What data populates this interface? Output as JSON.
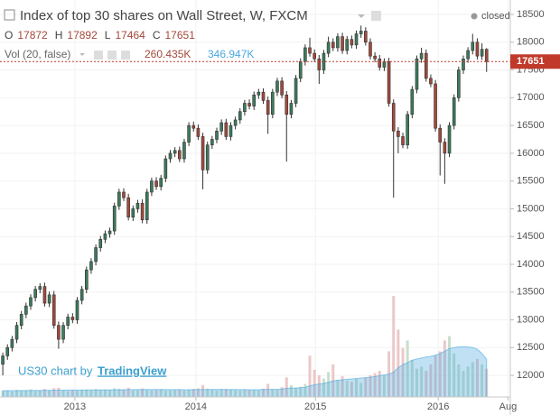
{
  "chart_data": {
    "type": "candlestick",
    "title": "Index of top 30 shares on Wall Street, W, FXCM",
    "status": "closed",
    "ohlc_labels": [
      "O",
      "H",
      "L",
      "C"
    ],
    "up_color": "#3c7a5c",
    "down_color": "#a3483a",
    "ohlc": [
      [
        12200,
        12410,
        12000,
        12350
      ],
      [
        12350,
        12560,
        12280,
        12500
      ],
      [
        12500,
        12710,
        12430,
        12650
      ],
      [
        12650,
        12960,
        12580,
        12900
      ],
      [
        12900,
        13160,
        12830,
        13100
      ],
      [
        13100,
        13310,
        13030,
        13250
      ],
      [
        13250,
        13460,
        13180,
        13400
      ],
      [
        13400,
        13610,
        13330,
        13550
      ],
      [
        13550,
        13660,
        13480,
        13600
      ],
      [
        13600,
        13670,
        13240,
        13300
      ],
      [
        13300,
        13510,
        13230,
        13450
      ],
      [
        13450,
        13520,
        12840,
        12900
      ],
      [
        12900,
        12970,
        12480,
        12650
      ],
      [
        12650,
        12960,
        12580,
        12900
      ],
      [
        12900,
        13110,
        12830,
        13050
      ],
      [
        13050,
        13120,
        12940,
        13000
      ],
      [
        13000,
        13410,
        12930,
        13350
      ],
      [
        13350,
        13610,
        13280,
        13550
      ],
      [
        13550,
        13960,
        13480,
        13900
      ],
      [
        13900,
        14110,
        13830,
        14050
      ],
      [
        14050,
        14360,
        13980,
        14300
      ],
      [
        14300,
        14510,
        14230,
        14450
      ],
      [
        14450,
        14610,
        14380,
        14550
      ],
      [
        14550,
        14660,
        14480,
        14600
      ],
      [
        14600,
        15110,
        14530,
        15050
      ],
      [
        15050,
        15360,
        14980,
        15300
      ],
      [
        15300,
        15370,
        15140,
        15200
      ],
      [
        15200,
        15270,
        14790,
        14850
      ],
      [
        14850,
        15060,
        14780,
        15000
      ],
      [
        15000,
        15160,
        14930,
        15100
      ],
      [
        15100,
        15170,
        14740,
        14800
      ],
      [
        14800,
        15360,
        14730,
        15300
      ],
      [
        15300,
        15560,
        15230,
        15500
      ],
      [
        15500,
        15570,
        15340,
        15400
      ],
      [
        15400,
        15610,
        15330,
        15550
      ],
      [
        15550,
        15960,
        15480,
        15900
      ],
      [
        15900,
        16060,
        15830,
        16000
      ],
      [
        16000,
        16110,
        15930,
        16050
      ],
      [
        16050,
        16120,
        15840,
        15900
      ],
      [
        15900,
        16260,
        15830,
        16200
      ],
      [
        16200,
        16560,
        16130,
        16500
      ],
      [
        16500,
        16570,
        16390,
        16450
      ],
      [
        16450,
        16520,
        16240,
        16300
      ],
      [
        16300,
        16370,
        15350,
        15700
      ],
      [
        15700,
        16210,
        15630,
        16150
      ],
      [
        16150,
        16310,
        16080,
        16250
      ],
      [
        16250,
        16460,
        16180,
        16400
      ],
      [
        16400,
        16610,
        16330,
        16550
      ],
      [
        16550,
        16620,
        16240,
        16300
      ],
      [
        16300,
        16560,
        16230,
        16500
      ],
      [
        16500,
        16660,
        16430,
        16600
      ],
      [
        16600,
        16810,
        16530,
        16750
      ],
      [
        16750,
        16960,
        16680,
        16900
      ],
      [
        16900,
        16970,
        16790,
        16850
      ],
      [
        16850,
        17110,
        16780,
        17050
      ],
      [
        17050,
        17160,
        16980,
        17100
      ],
      [
        17100,
        17170,
        16890,
        16950
      ],
      [
        16950,
        17020,
        16350,
        16700
      ],
      [
        16700,
        17160,
        16630,
        17100
      ],
      [
        17100,
        17360,
        17030,
        17300
      ],
      [
        17300,
        17370,
        16990,
        17050
      ],
      [
        17050,
        17120,
        15850,
        16700
      ],
      [
        16700,
        16960,
        16630,
        16900
      ],
      [
        16900,
        17410,
        16830,
        17350
      ],
      [
        17350,
        17710,
        17280,
        17650
      ],
      [
        17650,
        17960,
        17580,
        17900
      ],
      [
        17900,
        18080,
        17740,
        17800
      ],
      [
        17800,
        17870,
        17640,
        17700
      ],
      [
        17700,
        17770,
        17250,
        17500
      ],
      [
        17500,
        17860,
        17430,
        17800
      ],
      [
        17800,
        18100,
        17730,
        18000
      ],
      [
        18000,
        18070,
        17840,
        17900
      ],
      [
        17900,
        18160,
        17830,
        18100
      ],
      [
        18100,
        18170,
        17790,
        17850
      ],
      [
        17850,
        18110,
        17780,
        18050
      ],
      [
        18050,
        18120,
        17890,
        17950
      ],
      [
        17950,
        18210,
        17880,
        18150
      ],
      [
        18150,
        18300,
        18080,
        18200
      ],
      [
        18200,
        18270,
        17940,
        18000
      ],
      [
        18000,
        18070,
        17690,
        17750
      ],
      [
        17750,
        17820,
        17640,
        17700
      ],
      [
        17700,
        17770,
        17490,
        17550
      ],
      [
        17550,
        17710,
        17480,
        17650
      ],
      [
        17650,
        17720,
        16840,
        16900
      ],
      [
        16900,
        16970,
        15200,
        16400
      ],
      [
        16400,
        16470,
        16000,
        16300
      ],
      [
        16300,
        16370,
        16090,
        16150
      ],
      [
        16150,
        16760,
        16080,
        16700
      ],
      [
        16700,
        17210,
        16630,
        17150
      ],
      [
        17150,
        17760,
        17080,
        17700
      ],
      [
        17700,
        17900,
        17630,
        17800
      ],
      [
        17800,
        17870,
        17290,
        17350
      ],
      [
        17350,
        17420,
        17190,
        17250
      ],
      [
        17250,
        17320,
        16390,
        16450
      ],
      [
        16450,
        16520,
        15600,
        16200
      ],
      [
        16200,
        16270,
        15450,
        16000
      ],
      [
        16000,
        16560,
        15930,
        16500
      ],
      [
        16500,
        17060,
        16430,
        17000
      ],
      [
        17000,
        17560,
        16930,
        17500
      ],
      [
        17500,
        17760,
        17430,
        17700
      ],
      [
        17700,
        17910,
        17630,
        17850
      ],
      [
        17850,
        18150,
        17780,
        18000
      ],
      [
        18000,
        18070,
        17690,
        17750
      ],
      [
        17750,
        17980,
        17680,
        17872
      ],
      [
        17872,
        17892,
        17464,
        17651
      ]
    ],
    "volume": {
      "name": "Vol (20, false)",
      "up_color": "#c9dfcd",
      "down_color": "#ecc8c8",
      "last_label": "260.435K",
      "values": [
        55,
        60,
        50,
        65,
        58,
        62,
        70,
        55,
        60,
        75,
        58,
        80,
        85,
        60,
        55,
        62,
        58,
        66,
        70,
        60,
        72,
        65,
        68,
        64,
        80,
        75,
        70,
        85,
        60,
        62,
        78,
        66,
        60,
        64,
        70,
        58,
        62,
        66,
        72,
        60,
        68,
        74,
        80,
        110,
        76,
        64,
        60,
        70,
        72,
        66,
        62,
        60,
        70,
        64,
        68,
        60,
        74,
        120,
        72,
        66,
        90,
        180,
        110,
        85,
        95,
        120,
        380,
        250,
        200,
        170,
        230,
        300,
        160,
        190,
        150,
        140,
        170,
        130,
        180,
        200,
        220,
        240,
        200,
        420,
        930,
        620,
        450,
        520,
        340,
        260,
        280,
        240,
        300,
        380,
        420,
        520,
        560,
        400,
        300,
        240,
        280,
        320,
        350,
        300,
        260.435
      ]
    },
    "volume_ma": {
      "color": "#4aa8e0",
      "last_label": "346.947K",
      "values": [
        58,
        58,
        58,
        59,
        59,
        59,
        60,
        60,
        60,
        61,
        61,
        62,
        63,
        63,
        63,
        63,
        63,
        63,
        63,
        64,
        64,
        65,
        65,
        65,
        65,
        66,
        66,
        67,
        67,
        68,
        68,
        68,
        69,
        69,
        68,
        68,
        67,
        67,
        67,
        66,
        66,
        67,
        67,
        68,
        69,
        70,
        70,
        70,
        69,
        68,
        68,
        67,
        67,
        66,
        66,
        66,
        70,
        70,
        70,
        71,
        73,
        80,
        82,
        83,
        85,
        88,
        103,
        112,
        119,
        125,
        135,
        147,
        154,
        158,
        163,
        166,
        169,
        174,
        177,
        182,
        188,
        196,
        204,
        210,
        228,
        270,
        297,
        316,
        339,
        349,
        358,
        368,
        374,
        385,
        400,
        421,
        445,
        455,
        461,
        462,
        460,
        455,
        440,
        400,
        346.947
      ]
    },
    "ylim": [
      11530,
      18760
    ],
    "yticks": [
      12000,
      12500,
      13000,
      13500,
      14000,
      14500,
      15000,
      15500,
      16000,
      16500,
      17000,
      17500,
      18000,
      18500
    ],
    "xlim": [
      -0.6,
      109.1
    ],
    "xticks": [
      {
        "value": 15.5,
        "label": "2013"
      },
      {
        "value": 41.5,
        "label": "2014"
      },
      {
        "value": 67.2,
        "label": "2015"
      },
      {
        "value": 93.6,
        "label": "2016"
      },
      {
        "value": 108.6,
        "label": "Aug"
      }
    ],
    "grid": true,
    "attribution": {
      "text": "US30 chart by",
      "link": "TradingView"
    }
  }
}
